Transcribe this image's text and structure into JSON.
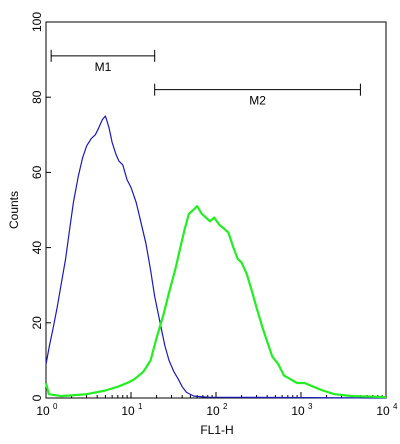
{
  "chart_data": {
    "type": "line",
    "title": "",
    "xlabel": "FL1-H",
    "ylabel": "Counts",
    "x_scale": "log",
    "xlim": [
      1,
      10000
    ],
    "ylim": [
      0,
      100
    ],
    "grid": false,
    "y_ticks": [
      "0",
      "20",
      "40",
      "60",
      "80",
      "100"
    ],
    "x_ticks": [
      {
        "base": "10",
        "exp": "0"
      },
      {
        "base": "10",
        "exp": "1"
      },
      {
        "base": "10",
        "exp": "2"
      },
      {
        "base": "10",
        "exp": "3"
      },
      {
        "base": "10",
        "exp": "4"
      }
    ],
    "colors": {
      "control": "#1a1ab8",
      "sample": "#22ee22"
    },
    "series": [
      {
        "color": "#1a1ab8",
        "points": [
          [
            1.0,
            9
          ],
          [
            1.1,
            14
          ],
          [
            1.2,
            18
          ],
          [
            1.35,
            24
          ],
          [
            1.5,
            30
          ],
          [
            1.7,
            37
          ],
          [
            1.9,
            45
          ],
          [
            2.1,
            52
          ],
          [
            2.4,
            59
          ],
          [
            2.7,
            64
          ],
          [
            3.0,
            67
          ],
          [
            3.4,
            69
          ],
          [
            3.8,
            70
          ],
          [
            4.2,
            72
          ],
          [
            4.6,
            74
          ],
          [
            5.0,
            75
          ],
          [
            5.5,
            72
          ],
          [
            6.0,
            68
          ],
          [
            6.6,
            65
          ],
          [
            7.2,
            63
          ],
          [
            8.0,
            62
          ],
          [
            9.0,
            58
          ],
          [
            10.0,
            56
          ],
          [
            11.5,
            52
          ],
          [
            13.0,
            47
          ],
          [
            15.0,
            41
          ],
          [
            17.0,
            34
          ],
          [
            19.0,
            27
          ],
          [
            22.0,
            20
          ],
          [
            25.0,
            14
          ],
          [
            28.0,
            10
          ],
          [
            32.0,
            7
          ],
          [
            36.0,
            5
          ],
          [
            40.0,
            3
          ],
          [
            45.0,
            1.5
          ],
          [
            55.0,
            0.5
          ],
          [
            80.0,
            0.2
          ],
          [
            10000,
            0
          ]
        ]
      },
      {
        "color": "#22ee22",
        "points": [
          [
            1.0,
            4
          ],
          [
            1.08,
            1
          ],
          [
            1.5,
            0.5
          ],
          [
            3.0,
            1
          ],
          [
            5.0,
            2
          ],
          [
            7.0,
            3
          ],
          [
            9.0,
            4
          ],
          [
            11.0,
            5
          ],
          [
            14.0,
            7
          ],
          [
            17.0,
            10
          ],
          [
            20.0,
            16
          ],
          [
            24.0,
            22
          ],
          [
            28.0,
            28
          ],
          [
            33.0,
            34
          ],
          [
            38.0,
            40
          ],
          [
            43.0,
            45
          ],
          [
            48.0,
            49
          ],
          [
            54.0,
            50
          ],
          [
            60.0,
            51
          ],
          [
            68.0,
            49
          ],
          [
            76.0,
            48
          ],
          [
            85.0,
            47
          ],
          [
            95.0,
            48
          ],
          [
            110.0,
            46
          ],
          [
            125.0,
            45
          ],
          [
            140.0,
            44
          ],
          [
            160.0,
            40
          ],
          [
            180.0,
            37
          ],
          [
            200.0,
            36
          ],
          [
            230.0,
            33
          ],
          [
            260.0,
            29
          ],
          [
            300.0,
            24
          ],
          [
            350.0,
            19
          ],
          [
            400.0,
            15
          ],
          [
            460.0,
            11
          ],
          [
            540.0,
            9
          ],
          [
            630.0,
            6
          ],
          [
            750.0,
            5
          ],
          [
            900.0,
            4
          ],
          [
            1100.0,
            4
          ],
          [
            1400.0,
            3
          ],
          [
            1800.0,
            2
          ],
          [
            2500.0,
            1
          ],
          [
            4000.0,
            0.5
          ],
          [
            6000.0,
            0.4
          ],
          [
            10000,
            0.2
          ]
        ]
      }
    ],
    "markers": [
      {
        "label": "M1",
        "x_start": 1.15,
        "x_end": 19,
        "y": 91
      },
      {
        "label": "M2",
        "x_start": 19,
        "x_end": 5000,
        "y": 82
      }
    ]
  }
}
